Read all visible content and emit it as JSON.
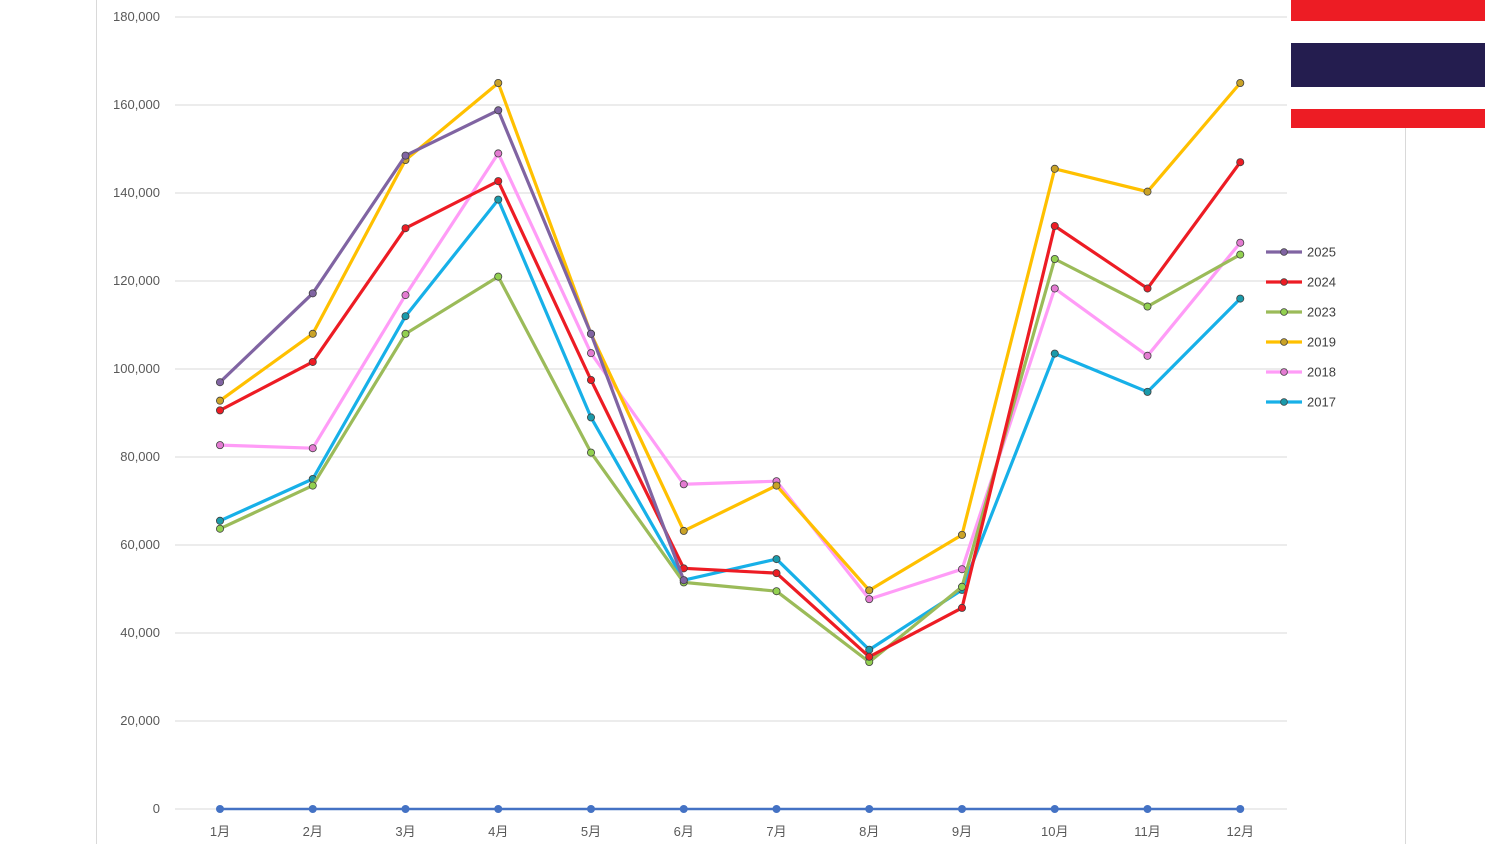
{
  "colors": {
    "flag_red": "#ed1c24",
    "flag_blue": "#241d4f",
    "grid": "#d9d9d9",
    "baseline": "#4472c4"
  },
  "flag": {
    "icon": "thailand-flag-icon"
  },
  "chart_data": {
    "type": "line",
    "categories": [
      "1月",
      "2月",
      "3月",
      "4月",
      "5月",
      "6月",
      "7月",
      "8月",
      "9月",
      "10月",
      "11月",
      "12月"
    ],
    "ylim": [
      0,
      180000
    ],
    "yticks": [
      0,
      20000,
      40000,
      60000,
      80000,
      100000,
      120000,
      140000,
      160000,
      180000
    ],
    "ytick_labels": [
      "0",
      "20,000",
      "40,000",
      "60,000",
      "80,000",
      "100,000",
      "120,000",
      "140,000",
      "160,000",
      "180,000"
    ],
    "grid": true,
    "legend_position": "right",
    "baseline_series": {
      "values": [
        0,
        0,
        0,
        0,
        0,
        0,
        0,
        0,
        0,
        0,
        0,
        0
      ],
      "color": "#4472c4"
    },
    "series": [
      {
        "name": "2017",
        "color": "#17b0e8",
        "marker_fill": "#1b9aaa",
        "values": [
          65500,
          75000,
          112000,
          138500,
          89000,
          52000,
          56800,
          36200,
          49800,
          103500,
          94800,
          116000
        ]
      },
      {
        "name": "2018",
        "color": "#ff9cf7",
        "marker_fill": "#e37bd1",
        "values": [
          82700,
          82000,
          116800,
          149000,
          103600,
          73800,
          74500,
          47700,
          54500,
          118300,
          103000,
          128700
        ]
      },
      {
        "name": "2023",
        "color": "#9bbb59",
        "marker_fill": "#92d050",
        "values": [
          63700,
          73500,
          108000,
          121000,
          81000,
          51500,
          49500,
          33400,
          50500,
          125000,
          114200,
          126000
        ]
      },
      {
        "name": "2019",
        "color": "#ffc000",
        "marker_fill": "#c9a227",
        "values": [
          92800,
          108000,
          147500,
          165000,
          108000,
          63200,
          73500,
          49700,
          62300,
          145500,
          140300,
          165000
        ]
      },
      {
        "name": "2024",
        "color": "#ed1c24",
        "marker_fill": "#ed1c24",
        "values": [
          90600,
          101600,
          132000,
          142700,
          97500,
          54700,
          53600,
          34600,
          45700,
          132500,
          118300,
          147000
        ]
      },
      {
        "name": "2025",
        "color": "#8064a2",
        "marker_fill": "#8064a2",
        "values": [
          97000,
          117200,
          148500,
          158800,
          108000,
          52000,
          null,
          null,
          null,
          null,
          null,
          null
        ]
      }
    ],
    "legend_order": [
      "2025",
      "2024",
      "2023",
      "2019",
      "2018",
      "2017"
    ]
  }
}
